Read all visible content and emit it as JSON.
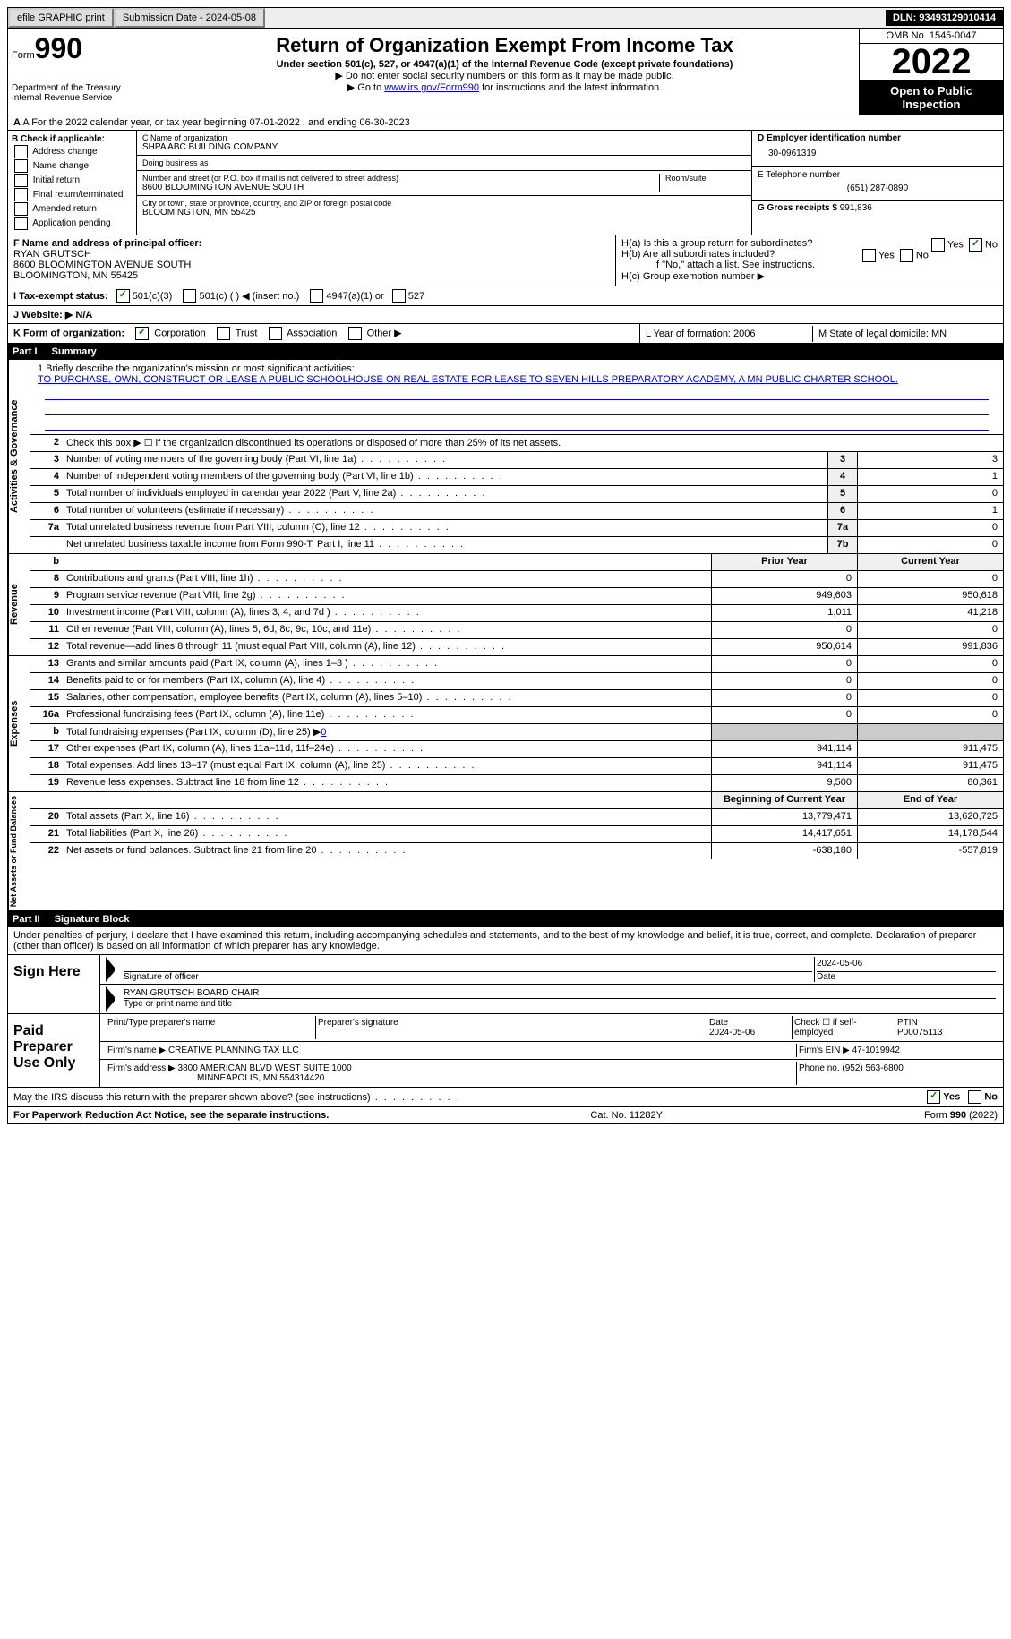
{
  "topbar": {
    "efile": "efile GRAPHIC print",
    "submission": "Submission Date - 2024-05-08",
    "dln": "DLN: 93493129010414"
  },
  "header": {
    "form_word": "Form",
    "form_num": "990",
    "dept": "Department of the Treasury\nInternal Revenue Service",
    "title": "Return of Organization Exempt From Income Tax",
    "subtitle": "Under section 501(c), 527, or 4947(a)(1) of the Internal Revenue Code (except private foundations)",
    "note1": "▶ Do not enter social security numbers on this form as it may be made public.",
    "note2_pre": "▶ Go to ",
    "note2_link": "www.irs.gov/Form990",
    "note2_post": " for instructions and the latest information.",
    "omb": "OMB No. 1545-0047",
    "year": "2022",
    "open": "Open to Public Inspection"
  },
  "row_a": "A For the 2022 calendar year, or tax year beginning 07-01-2022   , and ending 06-30-2023",
  "col_b": {
    "title": "B Check if applicable:",
    "items": [
      "Address change",
      "Name change",
      "Initial return",
      "Final return/terminated",
      "Amended return",
      "Application pending"
    ]
  },
  "col_c": {
    "name_label": "C Name of organization",
    "name": "SHPA ABC BUILDING COMPANY",
    "dba_label": "Doing business as",
    "dba": "",
    "addr_label": "Number and street (or P.O. box if mail is not delivered to street address)",
    "room_label": "Room/suite",
    "addr": "8600 BLOOMINGTON AVENUE SOUTH",
    "city_label": "City or town, state or province, country, and ZIP or foreign postal code",
    "city": "BLOOMINGTON, MN  55425"
  },
  "col_d": {
    "ein_label": "D Employer identification number",
    "ein": "30-0961319",
    "phone_label": "E Telephone number",
    "phone": "(651) 287-0890",
    "gross_label": "G Gross receipts $",
    "gross": "991,836"
  },
  "row_f": {
    "label": "F  Name and address of principal officer:",
    "name": "RYAN GRUTSCH",
    "addr1": "8600 BLOOMINGTON AVENUE SOUTH",
    "addr2": "BLOOMINGTON, MN  55425"
  },
  "row_h": {
    "ha": "H(a)  Is this a group return for subordinates?",
    "hb": "H(b)  Are all subordinates included?",
    "hb_note": "If \"No,\" attach a list. See instructions.",
    "hc": "H(c)  Group exemption number ▶"
  },
  "row_i": {
    "label": "I   Tax-exempt status:",
    "o1": "501(c)(3)",
    "o2": "501(c) (  ) ◀ (insert no.)",
    "o3": "4947(a)(1) or",
    "o4": "527"
  },
  "row_j": "J   Website: ▶   N/A",
  "row_k": {
    "label": "K Form of organization:",
    "o1": "Corporation",
    "o2": "Trust",
    "o3": "Association",
    "o4": "Other ▶",
    "l": "L Year of formation: 2006",
    "m": "M State of legal domicile: MN"
  },
  "part1": {
    "num": "Part I",
    "title": "Summary"
  },
  "mission": {
    "label": "1   Briefly describe the organization's mission or most significant activities:",
    "text": "TO PURCHASE, OWN, CONSTRUCT OR LEASE A PUBLIC SCHOOLHOUSE ON REAL ESTATE FOR LEASE TO SEVEN HILLS PREPARATORY ACADEMY, A MN PUBLIC CHARTER SCHOOL."
  },
  "gov": {
    "l2": "Check this box ▶ ☐  if the organization discontinued its operations or disposed of more than 25% of its net assets.",
    "lines": [
      {
        "n": "3",
        "d": "Number of voting members of the governing body (Part VI, line 1a)",
        "bn": "3",
        "v": "3"
      },
      {
        "n": "4",
        "d": "Number of independent voting members of the governing body (Part VI, line 1b)",
        "bn": "4",
        "v": "1"
      },
      {
        "n": "5",
        "d": "Total number of individuals employed in calendar year 2022 (Part V, line 2a)",
        "bn": "5",
        "v": "0"
      },
      {
        "n": "6",
        "d": "Total number of volunteers (estimate if necessary)",
        "bn": "6",
        "v": "1"
      },
      {
        "n": "7a",
        "d": "Total unrelated business revenue from Part VIII, column (C), line 12",
        "bn": "7a",
        "v": "0"
      },
      {
        "n": "",
        "d": "Net unrelated business taxable income from Form 990-T, Part I, line 11",
        "bn": "7b",
        "v": "0"
      }
    ]
  },
  "rev": {
    "header": {
      "py": "Prior Year",
      "cy": "Current Year"
    },
    "lines": [
      {
        "n": "8",
        "d": "Contributions and grants (Part VIII, line 1h)",
        "py": "0",
        "cy": "0"
      },
      {
        "n": "9",
        "d": "Program service revenue (Part VIII, line 2g)",
        "py": "949,603",
        "cy": "950,618"
      },
      {
        "n": "10",
        "d": "Investment income (Part VIII, column (A), lines 3, 4, and 7d )",
        "py": "1,011",
        "cy": "41,218"
      },
      {
        "n": "11",
        "d": "Other revenue (Part VIII, column (A), lines 5, 6d, 8c, 9c, 10c, and 11e)",
        "py": "0",
        "cy": "0"
      },
      {
        "n": "12",
        "d": "Total revenue—add lines 8 through 11 (must equal Part VIII, column (A), line 12)",
        "py": "950,614",
        "cy": "991,836"
      }
    ]
  },
  "exp": {
    "lines": [
      {
        "n": "13",
        "d": "Grants and similar amounts paid (Part IX, column (A), lines 1–3 )",
        "py": "0",
        "cy": "0"
      },
      {
        "n": "14",
        "d": "Benefits paid to or for members (Part IX, column (A), line 4)",
        "py": "0",
        "cy": "0"
      },
      {
        "n": "15",
        "d": "Salaries, other compensation, employee benefits (Part IX, column (A), lines 5–10)",
        "py": "0",
        "cy": "0"
      },
      {
        "n": "16a",
        "d": "Professional fundraising fees (Part IX, column (A), line 11e)",
        "py": "0",
        "cy": "0"
      },
      {
        "n": "b",
        "d": "Total fundraising expenses (Part IX, column (D), line 25) ▶",
        "py": "shaded",
        "cy": "shaded",
        "fval": "0"
      },
      {
        "n": "17",
        "d": "Other expenses (Part IX, column (A), lines 11a–11d, 11f–24e)",
        "py": "941,114",
        "cy": "911,475"
      },
      {
        "n": "18",
        "d": "Total expenses. Add lines 13–17 (must equal Part IX, column (A), line 25)",
        "py": "941,114",
        "cy": "911,475"
      },
      {
        "n": "19",
        "d": "Revenue less expenses. Subtract line 18 from line 12",
        "py": "9,500",
        "cy": "80,361"
      }
    ]
  },
  "net": {
    "header": {
      "py": "Beginning of Current Year",
      "cy": "End of Year"
    },
    "lines": [
      {
        "n": "20",
        "d": "Total assets (Part X, line 16)",
        "py": "13,779,471",
        "cy": "13,620,725"
      },
      {
        "n": "21",
        "d": "Total liabilities (Part X, line 26)",
        "py": "14,417,651",
        "cy": "14,178,544"
      },
      {
        "n": "22",
        "d": "Net assets or fund balances. Subtract line 21 from line 20",
        "py": "-638,180",
        "cy": "-557,819"
      }
    ]
  },
  "part2": {
    "num": "Part II",
    "title": "Signature Block"
  },
  "sig": {
    "penalty": "Under penalties of perjury, I declare that I have examined this return, including accompanying schedules and statements, and to the best of my knowledge and belief, it is true, correct, and complete. Declaration of preparer (other than officer) is based on all information of which preparer has any knowledge.",
    "sign_here": "Sign Here",
    "sig_officer": "Signature of officer",
    "sig_date": "2024-05-06",
    "date_label": "Date",
    "name_title": "RYAN GRUTSCH  BOARD CHAIR",
    "name_label": "Type or print name and title",
    "paid": "Paid Preparer Use Only",
    "prep_name_label": "Print/Type preparer's name",
    "prep_sig_label": "Preparer's signature",
    "prep_date_label": "Date",
    "prep_date": "2024-05-06",
    "check_self": "Check ☐ if self-employed",
    "ptin_label": "PTIN",
    "ptin": "P00075113",
    "firm_name_label": "Firm's name    ▶",
    "firm_name": "CREATIVE PLANNING TAX LLC",
    "firm_ein_label": "Firm's EIN ▶",
    "firm_ein": "47-1019942",
    "firm_addr_label": "Firm's address ▶",
    "firm_addr1": "3800 AMERICAN BLVD WEST SUITE 1000",
    "firm_addr2": "MINNEAPOLIS, MN  554314420",
    "firm_phone_label": "Phone no.",
    "firm_phone": "(952) 563-6800"
  },
  "footer": {
    "discuss": "May the IRS discuss this return with the preparer shown above? (see instructions)",
    "yes": "Yes",
    "no": "No",
    "paperwork": "For Paperwork Reduction Act Notice, see the separate instructions.",
    "cat": "Cat. No. 11282Y",
    "form": "Form 990 (2022)"
  }
}
